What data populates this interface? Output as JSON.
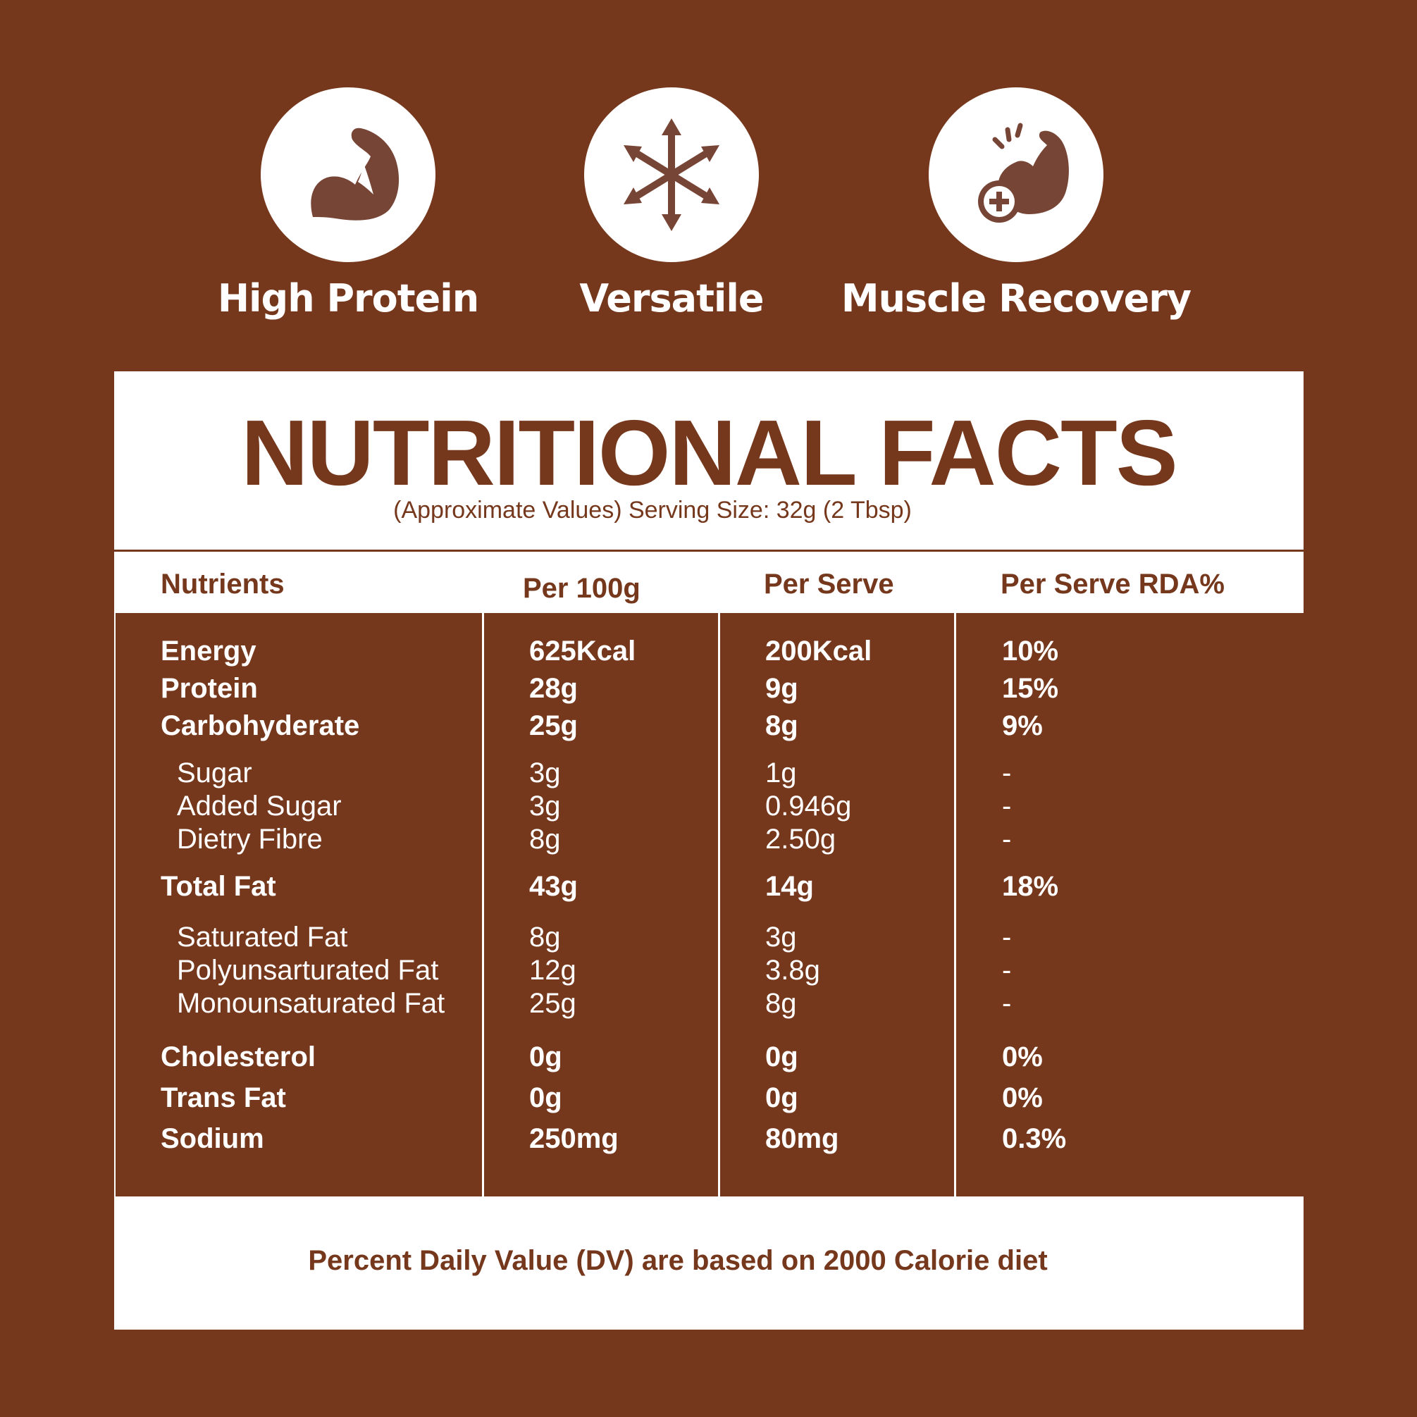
{
  "features": [
    {
      "icon": "flexed-arm-icon",
      "label": "High Protein"
    },
    {
      "icon": "multi-direction-arrows-icon",
      "label": "Versatile"
    },
    {
      "icon": "muscle-recovery-icon",
      "label": "Muscle Recovery"
    }
  ],
  "colors": {
    "brand_brown": "#76381c",
    "icon_brown": "#774536",
    "white": "#ffffff"
  },
  "panel": {
    "title": "NUTRITIONAL FACTS",
    "subtitle": "(Approximate Values) Serving Size: 32g (2 Tbsp)",
    "headers": [
      "Nutrients",
      "Per 100g",
      "Per Serve",
      "Per Serve RDA%"
    ],
    "rows": [
      {
        "nutrient": "Energy",
        "per100g": "625Kcal",
        "perServe": "200Kcal",
        "rda": "10%",
        "level": "major"
      },
      {
        "nutrient": "Protein",
        "per100g": "28g",
        "perServe": "9g",
        "rda": "15%",
        "level": "major"
      },
      {
        "nutrient": "Carbohyderate",
        "per100g": "25g",
        "perServe": "8g",
        "rda": "9%",
        "level": "major"
      },
      {
        "nutrient": "Sugar",
        "per100g": "3g",
        "perServe": "1g",
        "rda": "-",
        "level": "minor"
      },
      {
        "nutrient": "Added Sugar",
        "per100g": "3g",
        "perServe": "0.946g",
        "rda": "-",
        "level": "minor"
      },
      {
        "nutrient": "Dietry Fibre",
        "per100g": "8g",
        "perServe": "2.50g",
        "rda": "-",
        "level": "minor"
      },
      {
        "nutrient": "Total Fat",
        "per100g": "43g",
        "perServe": "14g",
        "rda": "18%",
        "level": "major"
      },
      {
        "nutrient": "Saturated Fat",
        "per100g": "8g",
        "perServe": "3g",
        "rda": "-",
        "level": "minor"
      },
      {
        "nutrient": "Polyunsarturated Fat",
        "per100g": "12g",
        "perServe": "3.8g",
        "rda": "-",
        "level": "minor"
      },
      {
        "nutrient": "Monounsaturated Fat",
        "per100g": "25g",
        "perServe": "8g",
        "rda": "-",
        "level": "minor"
      },
      {
        "nutrient": "Cholesterol",
        "per100g": "0g",
        "perServe": "0g",
        "rda": "0%",
        "level": "major"
      },
      {
        "nutrient": "Trans Fat",
        "per100g": "0g",
        "perServe": "0g",
        "rda": "0%",
        "level": "major"
      },
      {
        "nutrient": "Sodium",
        "per100g": "250mg",
        "perServe": "80mg",
        "rda": "0.3%",
        "level": "major"
      }
    ],
    "footer": "Percent Daily Value (DV) are based on 2000 Calorie diet"
  }
}
